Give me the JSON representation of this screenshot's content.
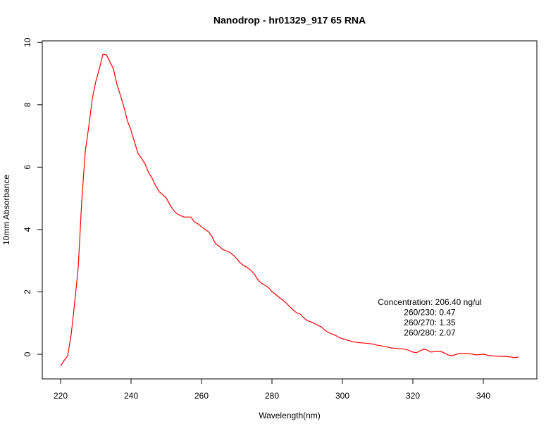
{
  "chart_data": {
    "type": "line",
    "title": "Nanodrop - hr01329_917 65 RNA",
    "x_label": "Wavelength(nm)",
    "y_label": "10mm Absorbance",
    "annotations": [
      "Concentration: 206.40 ng/ul",
      "260/230: 0.47",
      "260/270: 1.35",
      "260/280: 2.07"
    ],
    "x": [
      220,
      221,
      222,
      223,
      224,
      225,
      226,
      227,
      228,
      229,
      230,
      231,
      232,
      233,
      234,
      235,
      236,
      237,
      238,
      239,
      240,
      241,
      242,
      243,
      244,
      245,
      246,
      247,
      248,
      249,
      250,
      251,
      252,
      253,
      254,
      255,
      256,
      257,
      258,
      259,
      260,
      261,
      262,
      263,
      264,
      265,
      266,
      267,
      268,
      269,
      270,
      271,
      272,
      273,
      274,
      275,
      276,
      277,
      278,
      279,
      280,
      281,
      282,
      283,
      284,
      285,
      286,
      287,
      288,
      289,
      290,
      291,
      292,
      293,
      294,
      295,
      296,
      297,
      298,
      299,
      300,
      302,
      304,
      306,
      308,
      310,
      312,
      314,
      316,
      318,
      320,
      321,
      323,
      324,
      325,
      327,
      328,
      330,
      331,
      333,
      336,
      338,
      340,
      342,
      346,
      348,
      349,
      350
    ],
    "series": [
      {
        "name": "absorbance",
        "color": "#ff0000",
        "values": [
          -0.38,
          -0.2,
          -0.05,
          0.63,
          1.65,
          2.78,
          4.9,
          6.5,
          7.3,
          8.2,
          8.75,
          9.15,
          9.62,
          9.6,
          9.38,
          9.15,
          8.65,
          8.3,
          7.92,
          7.47,
          7.18,
          6.8,
          6.43,
          6.28,
          6.1,
          5.82,
          5.64,
          5.4,
          5.21,
          5.12,
          5.01,
          4.8,
          4.62,
          4.51,
          4.45,
          4.4,
          4.4,
          4.4,
          4.24,
          4.18,
          4.09,
          4.0,
          3.93,
          3.77,
          3.54,
          3.47,
          3.36,
          3.32,
          3.27,
          3.18,
          3.07,
          2.93,
          2.84,
          2.78,
          2.69,
          2.57,
          2.39,
          2.28,
          2.21,
          2.14,
          2.01,
          1.92,
          1.83,
          1.74,
          1.65,
          1.53,
          1.42,
          1.33,
          1.29,
          1.17,
          1.08,
          1.04,
          0.99,
          0.93,
          0.88,
          0.77,
          0.7,
          0.65,
          0.61,
          0.54,
          0.5,
          0.43,
          0.38,
          0.36,
          0.34,
          0.29,
          0.25,
          0.2,
          0.18,
          0.16,
          0.07,
          0.05,
          0.16,
          0.14,
          0.07,
          0.09,
          0.09,
          -0.02,
          -0.05,
          0.02,
          0.02,
          -0.02,
          0,
          -0.05,
          -0.07,
          -0.09,
          -0.11,
          -0.09
        ]
      }
    ],
    "xlim": [
      214.8,
      355.2
    ],
    "xticks": [
      220,
      240,
      260,
      280,
      300,
      320,
      340
    ],
    "ylim": [
      -0.79,
      10.05
    ],
    "yticks": [
      0,
      2,
      4,
      6,
      8,
      10
    ]
  }
}
